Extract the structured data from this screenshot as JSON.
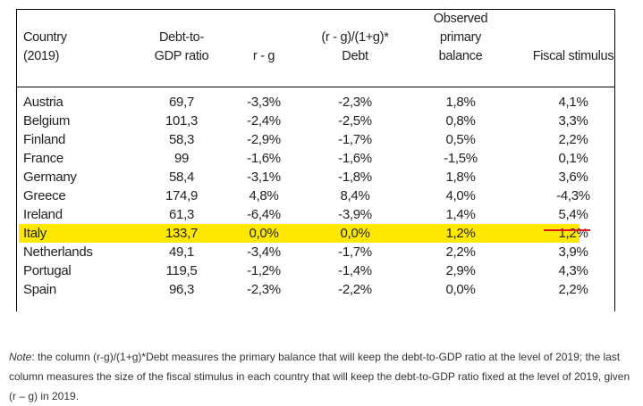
{
  "table": {
    "headers": {
      "country": [
        "Country",
        "(2019)"
      ],
      "debt": [
        "Debt-to-",
        "GDP ratio"
      ],
      "rg": [
        "r - g"
      ],
      "formula": [
        "(r - g)/(1+g)*",
        "Debt"
      ],
      "observed": [
        "Observed",
        "primary",
        "balance"
      ],
      "stimulus": [
        "Fiscal stimulus"
      ]
    },
    "rows": [
      [
        "Austria",
        "69,7",
        "-3,3%",
        "-2,3%",
        "1,8%",
        "4,1%"
      ],
      [
        "Belgium",
        "101,3",
        "-2,4%",
        "-2,5%",
        "0,8%",
        "3,3%"
      ],
      [
        "Finland",
        "58,3",
        "-2,9%",
        "-1,7%",
        "0,5%",
        "2,2%"
      ],
      [
        "France",
        "99",
        "-1,6%",
        "-1,6%",
        "-1,5%",
        "0,1%"
      ],
      [
        "Germany",
        "58,4",
        "-3,1%",
        "-1,8%",
        "1,8%",
        "3,6%"
      ],
      [
        "Greece",
        "174,9",
        "4,8%",
        "8,4%",
        "4,0%",
        "-4,3%"
      ],
      [
        "Ireland",
        "61,3",
        "-6,4%",
        "-3,9%",
        "1,4%",
        "5,4%"
      ],
      [
        "Italy",
        "133,7",
        "0,0%",
        "0,0%",
        "1,2%",
        "1,2%"
      ],
      [
        "Netherlands",
        "49,1",
        "-3,4%",
        "-1,7%",
        "2,2%",
        "3,9%"
      ],
      [
        "Portugal",
        "119,5",
        "-1,2%",
        "-1,4%",
        "2,9%",
        "4,3%"
      ],
      [
        "Spain",
        "96,3",
        "-2,3%",
        "-2,2%",
        "0,0%",
        "2,2%"
      ]
    ],
    "highlight_color": "#ffe800",
    "underline_color": "#e0141e"
  },
  "note": {
    "label": "Note",
    "text": ": the column (r-g)/(1+g)*Debt measures the  primary balance that will keep the debt-to-GDP ratio at the level of 2019; the last column measures the size of the fiscal stimulus in each country that will keep the debt-to-GDP ratio fixed at the level of 2019, given (r – g) in 2019."
  }
}
